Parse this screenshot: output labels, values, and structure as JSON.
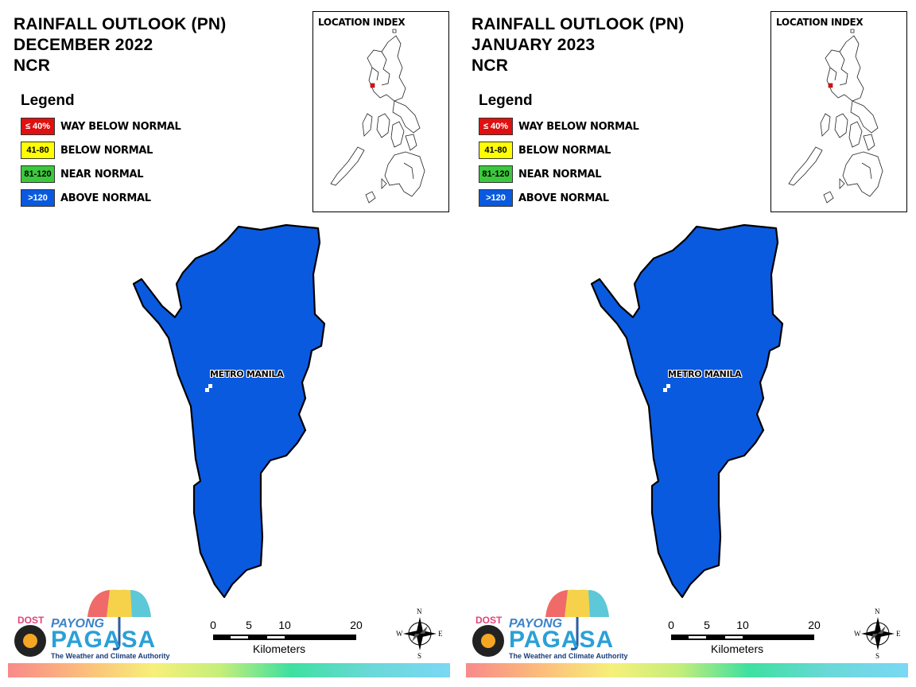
{
  "panels": [
    {
      "title_line1": "RAINFALL OUTLOOK (PN)",
      "title_line2": "DECEMBER 2022",
      "title_line3": "NCR",
      "fill_color": "#0a5ae0",
      "place_label": "METRO MANILA"
    },
    {
      "title_line1": "RAINFALL OUTLOOK (PN)",
      "title_line2": "JANUARY 2023",
      "title_line3": "NCR",
      "fill_color": "#0a5ae0",
      "place_label": "METRO MANILA"
    }
  ],
  "legend": {
    "title": "Legend",
    "items": [
      {
        "range": "≤ 40%",
        "label": "WAY BELOW NORMAL",
        "color": "#e01010",
        "text_color": "#ffffff"
      },
      {
        "range": "41-80",
        "label": "BELOW NORMAL",
        "color": "#ffff00",
        "text_color": "#000000"
      },
      {
        "range": "81-120",
        "label": "NEAR NORMAL",
        "color": "#3cc83c",
        "text_color": "#000000"
      },
      {
        "range": ">120",
        "label": "ABOVE NORMAL",
        "color": "#0a5ae0",
        "text_color": "#ffffff"
      }
    ]
  },
  "location_index": {
    "title": "LOCATION INDEX",
    "highlight_color": "#e01010"
  },
  "scale": {
    "ticks": [
      "0",
      "5",
      "10",
      "20"
    ],
    "unit": "Kilometers"
  },
  "compass": {
    "n": "N",
    "s": "S",
    "e": "E",
    "w": "W"
  },
  "logo": {
    "dost": "DOST",
    "payong": "PAYONG",
    "pagasa": "PAGASA",
    "tagline": "The Weather and Climate Authority"
  }
}
